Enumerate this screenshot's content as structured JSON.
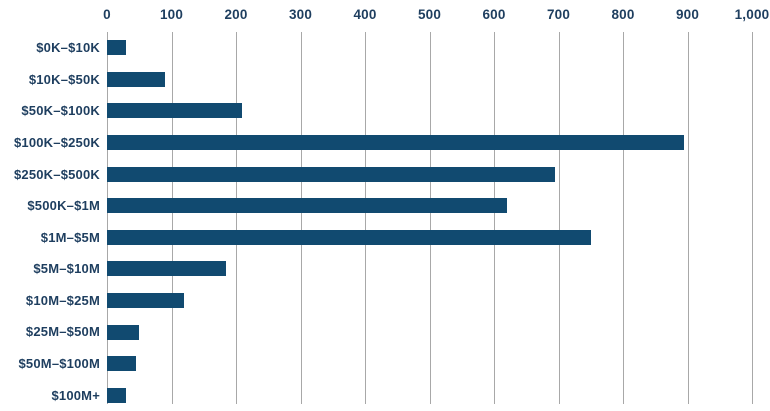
{
  "chart_data": {
    "type": "bar",
    "orientation": "horizontal",
    "title": "",
    "xlabel": "",
    "ylabel": "",
    "categories": [
      "$0K–$10K",
      "$10K–$50K",
      "$50K–$100K",
      "$100K–$250K",
      "$250K–$500K",
      "$500K–$1M",
      "$1M–$5M",
      "$5M–$10M",
      "$10M–$25M",
      "$25M–$50M",
      "$50M–$100M",
      "$100M+"
    ],
    "values": [
      30,
      90,
      210,
      895,
      695,
      620,
      750,
      185,
      120,
      50,
      45,
      30
    ],
    "xlim": [
      0,
      1000
    ],
    "x_ticks": [
      {
        "value": 0,
        "label": "0"
      },
      {
        "value": 100,
        "label": "100"
      },
      {
        "value": 200,
        "label": "200"
      },
      {
        "value": 300,
        "label": "300"
      },
      {
        "value": 400,
        "label": "400"
      },
      {
        "value": 500,
        "label": "500"
      },
      {
        "value": 600,
        "label": "600"
      },
      {
        "value": 700,
        "label": "700"
      },
      {
        "value": 800,
        "label": "800"
      },
      {
        "value": 900,
        "label": "900"
      },
      {
        "value": 1000,
        "label": "1,000"
      }
    ],
    "grid": "vertical gridlines at each x tick, ticks on top",
    "legend": "none",
    "colors": {
      "bar": "#114a70",
      "label_text": "#1e3e5f",
      "tick_text": "#1e3e5f",
      "gridline": "#a8a8a8",
      "background": "#ffffff"
    }
  }
}
